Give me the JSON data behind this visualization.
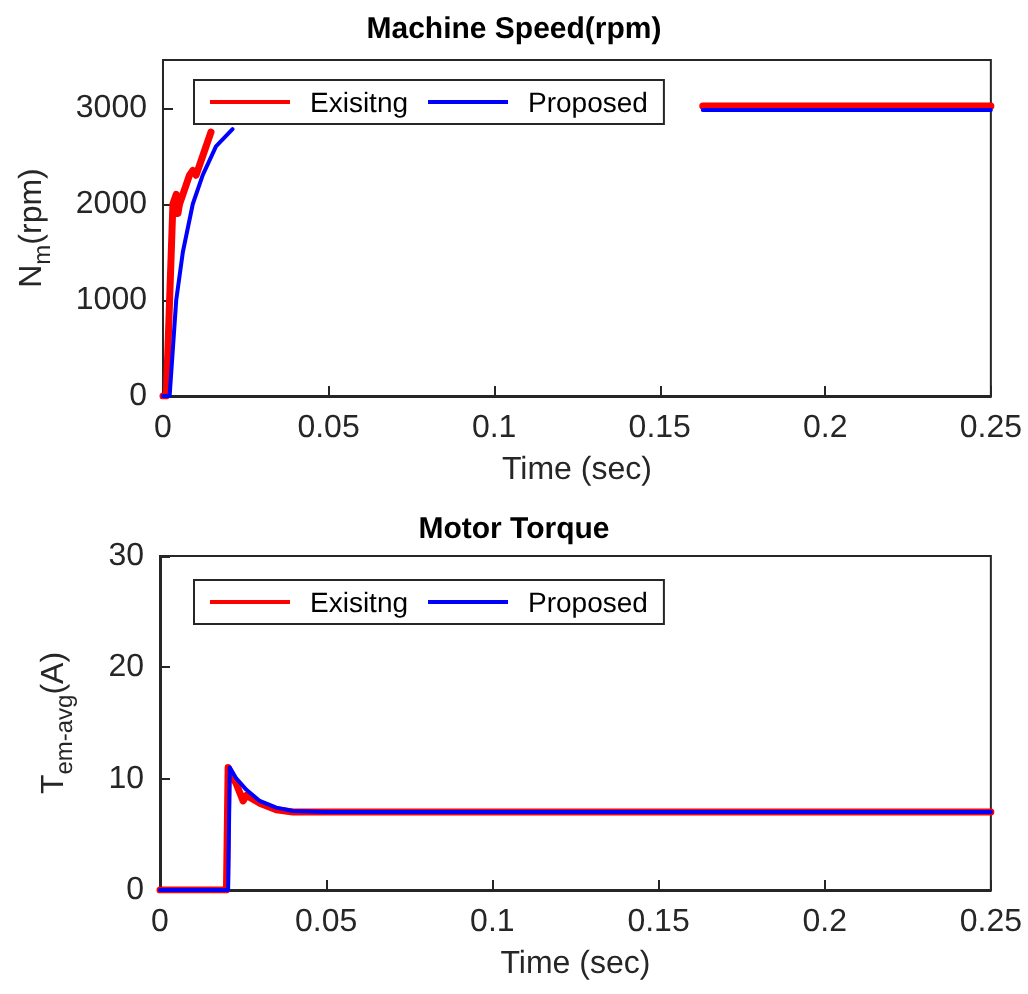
{
  "chart_data": [
    {
      "type": "line",
      "title": "Machine Speed(rpm)",
      "xlabel": "Time (sec)",
      "ylabel": "N$_{m}$(rpm)",
      "xlim": [
        0,
        0.25
      ],
      "xticks": [
        0,
        0.05,
        0.1,
        0.15,
        0.2,
        0.25
      ],
      "ylim": [
        0,
        3500
      ],
      "yticks": [
        0,
        1000,
        2000,
        3000
      ],
      "grid": false,
      "legend": "top left",
      "marker": "none",
      "line_style": "solid",
      "series": [
        {
          "name": "Exisitng",
          "color": "#ff0000",
          "x": [
            0,
            0.001,
            0.002,
            0.003,
            0.004,
            0.0045,
            0.005,
            0.007,
            0.008,
            0.009,
            0.01,
            0.012,
            0.0145,
            0.016,
            0.163,
            0.2,
            0.25
          ],
          "values": [
            0,
            0,
            1000,
            2000,
            2100,
            1900,
            2000,
            2200,
            2300,
            2350,
            2300,
            2500,
            2750,
            null,
            3020,
            3020,
            3020
          ]
        },
        {
          "name": "Proposed",
          "color": "#0000ff",
          "x": [
            0,
            0.002,
            0.004,
            0.006,
            0.009,
            0.012,
            0.016,
            0.021,
            0.022,
            0.163,
            0.2,
            0.25
          ],
          "values": [
            0,
            0,
            1000,
            1500,
            2000,
            2300,
            2600,
            2780,
            null,
            2980,
            2980,
            2980
          ]
        }
      ]
    },
    {
      "type": "line",
      "title": "Motor Torque",
      "xlabel": "Time (sec)",
      "ylabel": "T$_{em-avg}$(A)",
      "xlim": [
        0,
        0.25
      ],
      "xticks": [
        0,
        0.05,
        0.1,
        0.15,
        0.2,
        0.25
      ],
      "ylim": [
        0,
        30
      ],
      "yticks": [
        0,
        10,
        20,
        30
      ],
      "grid": false,
      "legend": "top left",
      "marker": "none",
      "line_style": "solid",
      "series": [
        {
          "name": "Exisitng",
          "color": "#ff0000",
          "x": [
            0,
            0.02,
            0.0205,
            0.023,
            0.025,
            0.026,
            0.03,
            0.035,
            0.04,
            0.25
          ],
          "values": [
            0,
            0,
            11,
            9.5,
            8,
            8.5,
            7.8,
            7.2,
            7,
            7
          ]
        },
        {
          "name": "Proposed",
          "color": "#0000ff",
          "x": [
            0,
            0.0205,
            0.021,
            0.023,
            0.026,
            0.03,
            0.035,
            0.04,
            0.05,
            0.25
          ],
          "values": [
            0,
            0,
            11,
            10,
            9,
            8,
            7.4,
            7.1,
            7,
            7
          ]
        }
      ]
    }
  ]
}
